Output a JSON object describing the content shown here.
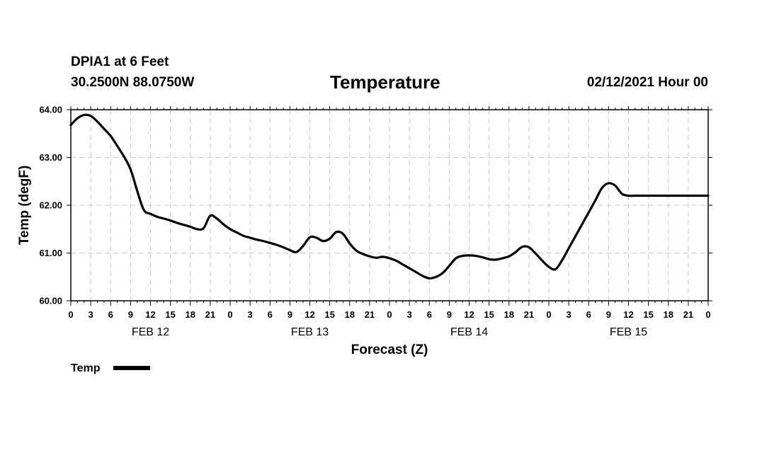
{
  "header": {
    "station": "DPIA1 at 6 Feet",
    "coordinates": "30.2500N 88.0750W",
    "run_time": "02/12/2021 Hour 00"
  },
  "chart_data": {
    "type": "line",
    "title": "Temperature",
    "xlabel": "Forecast (Z)",
    "ylabel": "Temp (degF)",
    "ylim": [
      60,
      64
    ],
    "xlim": [
      0,
      96
    ],
    "x_unit": "forecast hours from 02/12/2021 00Z",
    "y_ticks": [
      "60.00",
      "61.00",
      "62.00",
      "63.00",
      "64.00"
    ],
    "x_tick_labels": [
      "0",
      "3",
      "6",
      "9",
      "12",
      "15",
      "18",
      "21",
      "0",
      "3",
      "6",
      "9",
      "12",
      "15",
      "18",
      "21",
      "0",
      "3",
      "6",
      "9",
      "12",
      "15",
      "18",
      "21",
      "0",
      "3",
      "6",
      "9",
      "12",
      "15",
      "18",
      "21",
      "0"
    ],
    "date_labels": [
      {
        "label": "FEB 12",
        "hour": 12
      },
      {
        "label": "FEB 13",
        "hour": 36
      },
      {
        "label": "FEB 14",
        "hour": 60
      },
      {
        "label": "FEB 15",
        "hour": 84
      }
    ],
    "grid": true,
    "legend": "bottom-left",
    "series": [
      {
        "name": "Temp",
        "color": "#000000",
        "x": [
          0,
          1,
          2,
          3,
          4,
          5,
          6,
          7,
          8,
          9,
          10,
          11,
          12,
          13,
          14,
          15,
          16,
          17,
          18,
          19,
          20,
          21,
          22,
          23,
          24,
          25,
          26,
          27,
          28,
          29,
          30,
          31,
          32,
          33,
          34,
          35,
          36,
          37,
          38,
          39,
          40,
          41,
          42,
          43,
          44,
          45,
          46,
          47,
          48,
          49,
          50,
          51,
          52,
          53,
          54,
          55,
          56,
          57,
          58,
          59,
          60,
          61,
          62,
          63,
          64,
          65,
          66,
          67,
          68,
          69,
          70,
          71,
          72,
          73,
          74,
          75,
          76,
          77,
          78,
          79,
          80,
          81,
          82,
          83,
          84,
          85,
          86,
          87,
          88,
          89,
          90,
          91,
          92,
          93,
          94,
          95,
          96
        ],
        "values": [
          63.68,
          63.82,
          63.89,
          63.87,
          63.75,
          63.6,
          63.45,
          63.24,
          63.02,
          62.75,
          62.3,
          61.9,
          61.82,
          61.76,
          61.72,
          61.68,
          61.63,
          61.59,
          61.55,
          61.5,
          61.52,
          61.78,
          61.72,
          61.6,
          61.5,
          61.43,
          61.36,
          61.32,
          61.28,
          61.25,
          61.21,
          61.17,
          61.12,
          61.06,
          61.02,
          61.15,
          61.33,
          61.32,
          61.25,
          61.3,
          61.44,
          61.4,
          61.2,
          61.05,
          60.98,
          60.93,
          60.9,
          60.92,
          60.89,
          60.84,
          60.76,
          60.68,
          60.6,
          60.52,
          60.47,
          60.5,
          60.58,
          60.73,
          60.89,
          60.94,
          60.95,
          60.94,
          60.91,
          60.87,
          60.86,
          60.89,
          60.93,
          61.02,
          61.13,
          61.12,
          60.99,
          60.84,
          60.71,
          60.66,
          60.85,
          61.1,
          61.35,
          61.6,
          61.85,
          62.1,
          62.36,
          62.46,
          62.41,
          62.24,
          62.2,
          62.2,
          62.2,
          62.2,
          62.2,
          62.2,
          62.2,
          62.2,
          62.2,
          62.2,
          62.2,
          62.2,
          62.2
        ]
      }
    ]
  }
}
